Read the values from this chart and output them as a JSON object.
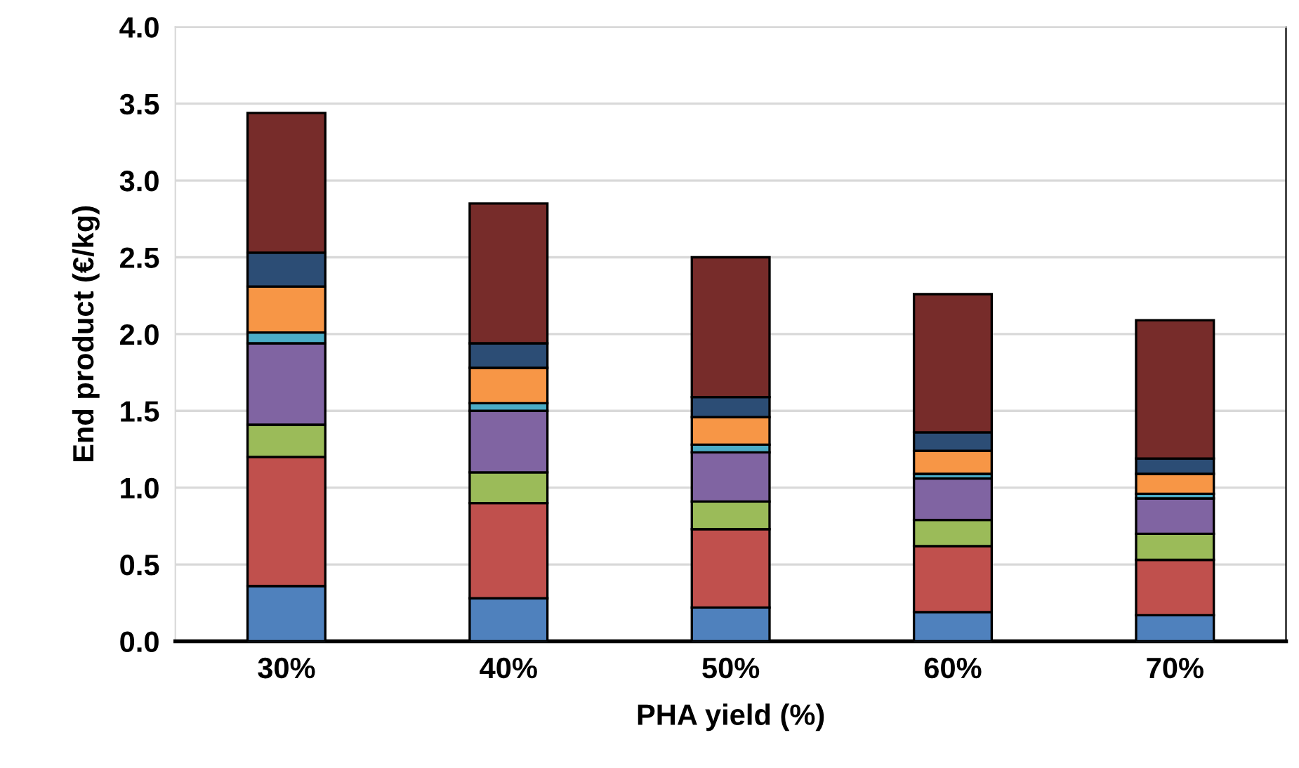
{
  "chart_data": {
    "type": "bar",
    "stacked": true,
    "xlabel": "PHA yield (%)",
    "ylabel": "End product (€/kg)",
    "categories": [
      "30%",
      "40%",
      "50%",
      "60%",
      "70%"
    ],
    "series": [
      {
        "color": "#4f81bd",
        "values": [
          0.36,
          0.28,
          0.22,
          0.19,
          0.17
        ]
      },
      {
        "color": "#c0504d",
        "values": [
          0.84,
          0.62,
          0.51,
          0.43,
          0.36
        ]
      },
      {
        "color": "#9bbb59",
        "values": [
          0.21,
          0.2,
          0.18,
          0.17,
          0.17
        ]
      },
      {
        "color": "#8064a2",
        "values": [
          0.53,
          0.4,
          0.32,
          0.27,
          0.23
        ]
      },
      {
        "color": "#4bacc6",
        "values": [
          0.07,
          0.05,
          0.05,
          0.03,
          0.03
        ]
      },
      {
        "color": "#f79646",
        "values": [
          0.3,
          0.23,
          0.18,
          0.15,
          0.13
        ]
      },
      {
        "color": "#2c4d75",
        "values": [
          0.22,
          0.16,
          0.13,
          0.12,
          0.1
        ]
      },
      {
        "color": "#772c2a",
        "values": [
          0.91,
          0.91,
          0.91,
          0.9,
          0.9
        ]
      }
    ],
    "ylim": [
      0,
      4
    ],
    "yticks": [
      {
        "value": 0,
        "label": "0.0"
      },
      {
        "value": 0.5,
        "label": "0.5"
      },
      {
        "value": 1,
        "label": "1.0"
      },
      {
        "value": 1.5,
        "label": "1.5"
      },
      {
        "value": 2,
        "label": "2.0"
      },
      {
        "value": 2.5,
        "label": "2.5"
      },
      {
        "value": 3,
        "label": "3.0"
      },
      {
        "value": 3.5,
        "label": "3.5"
      },
      {
        "value": 4,
        "label": "4.0"
      }
    ],
    "grid": "y"
  }
}
